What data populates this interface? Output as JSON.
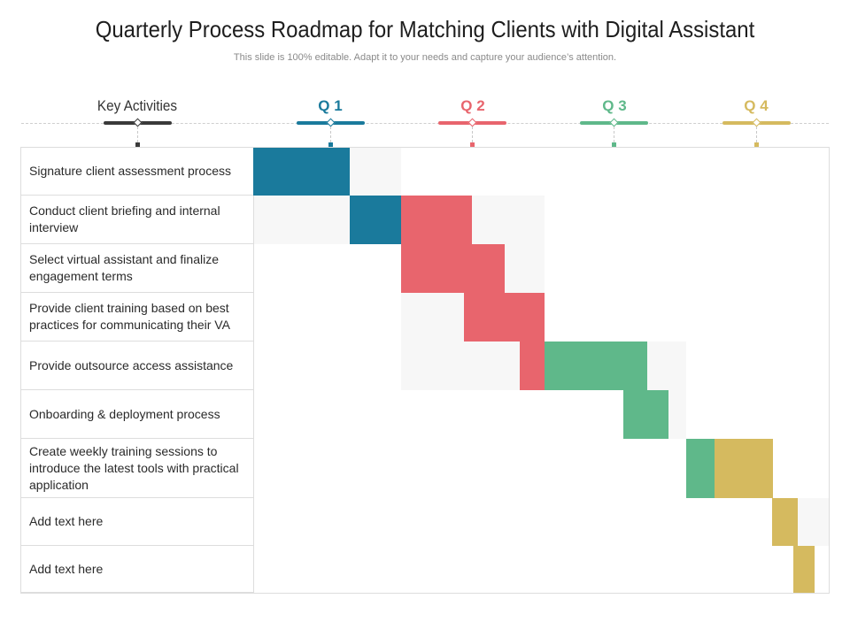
{
  "title": "Quarterly Process Roadmap for Matching Clients with Digital Assistant",
  "subtitle": "This slide is 100% editable. Adapt it to your needs and capture your audience’s attention.",
  "header": {
    "key_activities": "Key Activities",
    "quarters": [
      {
        "label": "Q 1",
        "color": "#1a7a9c"
      },
      {
        "label": "Q 2",
        "color": "#e8656d"
      },
      {
        "label": "Q 3",
        "color": "#5fb88a"
      },
      {
        "label": "Q 4",
        "color": "#d5ba5f"
      }
    ],
    "key_color": "#3a3a3a"
  },
  "activities": [
    "Signature client assessment process",
    "Conduct client briefing and internal interview",
    "Select virtual assistant and finalize engagement terms",
    "Provide client training based on best practices for communicating their VA",
    "Provide outsource access assistance",
    "Onboarding & deployment process",
    "Create weekly training sessions to introduce the latest tools with practical application",
    "Add text here",
    "Add text here"
  ]
}
